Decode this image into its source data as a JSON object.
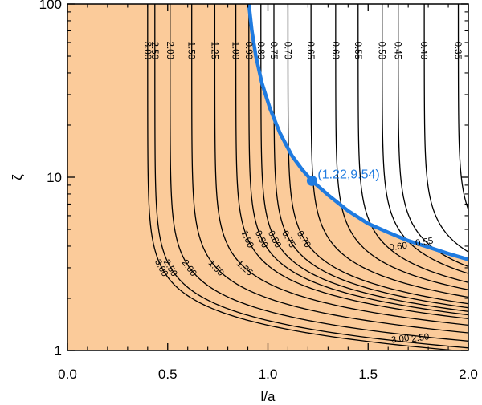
{
  "chart_data": {
    "type": "contour",
    "xlabel": "l/a",
    "ylabel": "ζ",
    "xlim": [
      0.0,
      2.0
    ],
    "ylim": [
      1,
      100
    ],
    "y_scale": "log",
    "x_ticks": [
      {
        "value": 0.0,
        "label": "0.0"
      },
      {
        "value": 0.5,
        "label": "0.5"
      },
      {
        "value": 1.0,
        "label": "1.0"
      },
      {
        "value": 1.5,
        "label": "1.5"
      },
      {
        "value": 2.0,
        "label": "2.0"
      }
    ],
    "y_ticks": [
      {
        "value": 1,
        "label": "1"
      },
      {
        "value": 10,
        "label": "10"
      },
      {
        "value": 100,
        "label": "100"
      }
    ],
    "shaded_region": {
      "description": "area left/below the boundary curve",
      "color": "#FBCB9A"
    },
    "contour_levels": [
      {
        "level": 3.0,
        "label": "3.00",
        "k": 0.3
      },
      {
        "level": 2.5,
        "label": "2.50",
        "k": 0.336
      },
      {
        "level": 2.0,
        "label": "2.00",
        "k": 0.412
      },
      {
        "level": 1.5,
        "label": "1.50",
        "k": 0.52
      },
      {
        "level": 1.25,
        "label": "1.25",
        "k": 0.635
      },
      {
        "level": 1.0,
        "label": "1.00",
        "k": 0.74
      },
      {
        "level": 0.9,
        "label": "0.90",
        "k": 0.805
      },
      {
        "level": 0.8,
        "label": "0.80",
        "k": 0.865
      },
      {
        "level": 0.75,
        "label": "0.75",
        "k": 0.93
      },
      {
        "level": 0.7,
        "label": "0.70",
        "k": 1.0
      },
      {
        "level": 0.65,
        "label": "0.65",
        "k": 1.115
      },
      {
        "level": 0.6,
        "label": "0.60",
        "k": 1.238
      },
      {
        "level": 0.55,
        "label": "0.55",
        "k": 1.35
      },
      {
        "level": 0.5,
        "label": "0.50",
        "k": 1.47
      },
      {
        "level": 0.45,
        "label": "0.45",
        "k": 1.55
      },
      {
        "level": 0.4,
        "label": "0.40",
        "k": 1.68
      },
      {
        "level": 0.35,
        "label": "0.35",
        "k": 1.85
      }
    ],
    "extra_contour_labels": [
      {
        "label": "3.00",
        "x": 1.66,
        "y": 1.17
      },
      {
        "label": "2.50",
        "x": 1.76,
        "y": 1.19
      },
      {
        "label": "0.60",
        "x": 1.65,
        "y": 4.0
      },
      {
        "label": "0.55",
        "x": 1.78,
        "y": 4.25
      }
    ],
    "boundary_curve": {
      "color": "#1F7BE0",
      "points": [
        [
          0.905,
          100
        ],
        [
          0.92,
          70
        ],
        [
          0.94,
          50
        ],
        [
          0.97,
          35
        ],
        [
          1.01,
          25
        ],
        [
          1.06,
          18
        ],
        [
          1.12,
          13.3
        ],
        [
          1.17,
          11.1
        ],
        [
          1.22,
          9.54
        ],
        [
          1.3,
          7.9
        ],
        [
          1.4,
          6.4
        ],
        [
          1.5,
          5.4
        ],
        [
          1.6,
          4.8
        ],
        [
          1.7,
          4.3
        ],
        [
          1.8,
          3.95
        ],
        [
          1.9,
          3.62
        ],
        [
          2.0,
          3.35
        ]
      ]
    },
    "highlight_point": {
      "x": 1.22,
      "y": 9.54,
      "label": "(1.22,9.54)",
      "color": "#1F7BE0"
    }
  }
}
